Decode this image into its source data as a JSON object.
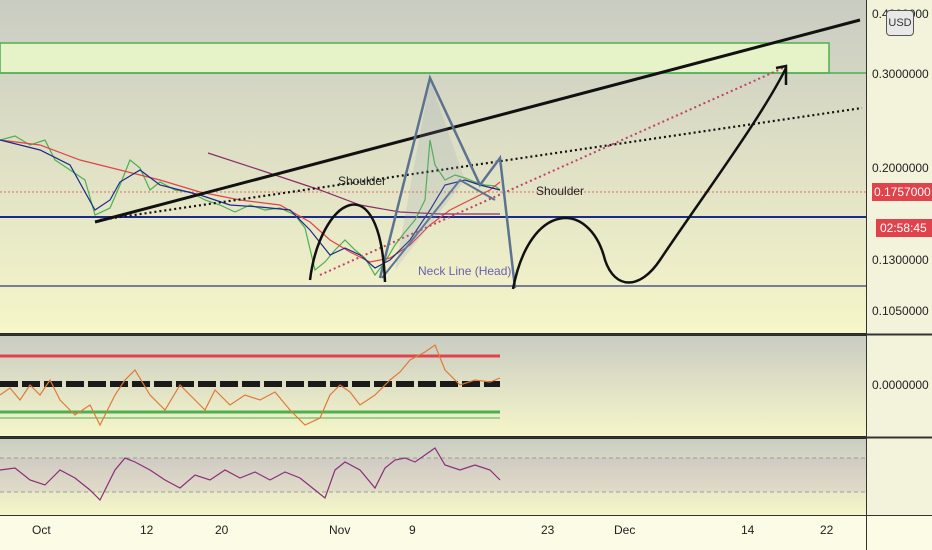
{
  "currency": "USD",
  "price_axis": {
    "ticks": [
      "0.3000000",
      "0.2000000",
      "0.1300000",
      "0.1050000"
    ],
    "top_partial": "0.4000000",
    "current_price": "0.1757000",
    "countdown": "02:58:45",
    "osc_zero": "0.0000000"
  },
  "time_axis": {
    "ticks": [
      "Oct",
      "12",
      "20",
      "Nov",
      "9",
      "23",
      "Dec",
      "14",
      "22"
    ]
  },
  "annotations": {
    "shoulder_left": "Shoulder",
    "shoulder_right": "Shoulder",
    "neck_line": "Neck Line (Head)"
  },
  "colors": {
    "accent_red": "#e0434c",
    "axis_blue": "#1c2a8a",
    "zone_green": "#4caf50",
    "pattern_line": "#5b7390"
  },
  "chart_data": [
    {
      "type": "line",
      "title": "",
      "y_axis": "log price (USD)",
      "ylim": [
        0.095,
        0.42
      ],
      "x": [
        "Oct",
        "12",
        "20",
        "Nov",
        "9",
        "23",
        "Dec",
        "14",
        "22"
      ],
      "horizontal_levels": [
        0.3,
        0.147,
        0.118
      ],
      "resistance_zone": [
        0.3,
        0.35
      ],
      "series": [
        {
          "name": "",
          "approx_path": [
            [
              0.22,
              "Oct"
            ],
            [
              0.2,
              "Oct+8"
            ],
            [
              0.19,
              "12"
            ],
            [
              0.17,
              "20"
            ],
            [
              0.155,
              "28"
            ],
            [
              0.125,
              "Nov+3"
            ],
            [
              0.14,
              "Nov+7"
            ],
            [
              0.21,
              "9+2"
            ],
            [
              0.18,
              "9+6"
            ],
            [
              0.1757,
              "9+10"
            ]
          ]
        }
      ],
      "projection": "head-and-shoulders pattern; projected rise to ~0.30"
    },
    {
      "type": "line",
      "title": "",
      "ylim": [
        -1,
        1
      ],
      "zero_label": "0.0000000",
      "series": [
        {
          "name": "",
          "values": "oscillator around zero"
        }
      ]
    },
    {
      "type": "line",
      "title": "",
      "series": [
        {
          "name": "",
          "values": "RSI-like oscillator"
        }
      ]
    }
  ]
}
